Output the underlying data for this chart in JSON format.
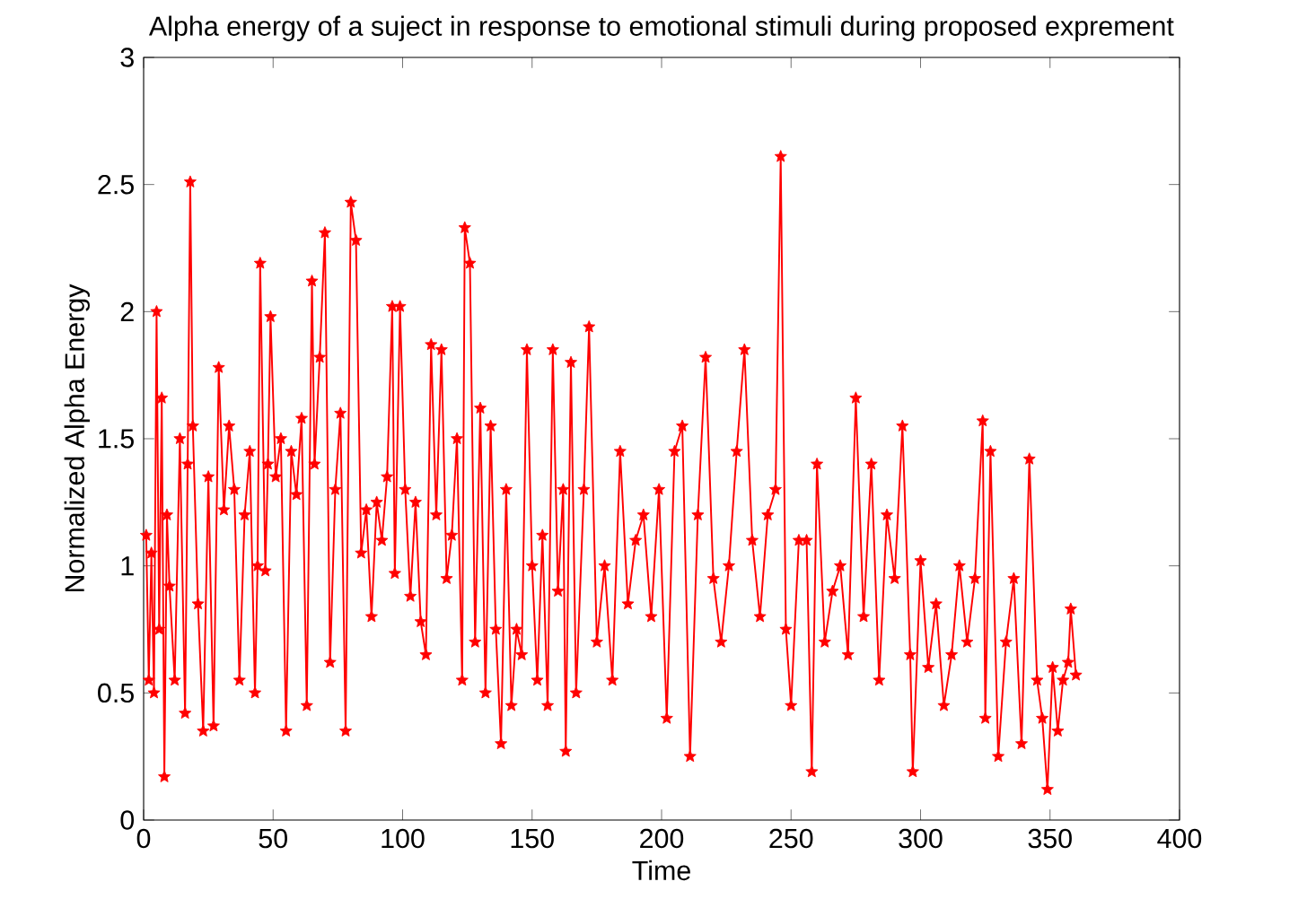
{
  "chart_data": {
    "type": "line",
    "title": "Alpha energy of a suject in response to emotional stimuli during proposed exprement",
    "xlabel": "Time",
    "ylabel": "Normalized Alpha Energy",
    "xlim": [
      0,
      400
    ],
    "xticks": [
      0,
      50,
      100,
      150,
      200,
      250,
      300,
      350,
      400
    ],
    "ylim": [
      0,
      3
    ],
    "yticks": [
      0,
      0.5,
      1,
      1.5,
      2,
      2.5,
      3
    ],
    "marker": "star",
    "line_style": "solid",
    "grid": false,
    "x": [
      1,
      2,
      3,
      4,
      5,
      6,
      7,
      8,
      9,
      10,
      12,
      14,
      16,
      17,
      18,
      19,
      21,
      23,
      25,
      27,
      29,
      31,
      33,
      35,
      37,
      39,
      41,
      43,
      44,
      45,
      47,
      48,
      49,
      51,
      53,
      55,
      57,
      59,
      61,
      63,
      65,
      66,
      68,
      70,
      72,
      74,
      76,
      78,
      80,
      82,
      84,
      86,
      88,
      90,
      92,
      94,
      96,
      97,
      99,
      101,
      103,
      105,
      107,
      109,
      111,
      113,
      115,
      117,
      119,
      121,
      123,
      124,
      126,
      128,
      130,
      132,
      134,
      136,
      138,
      140,
      142,
      144,
      146,
      148,
      150,
      152,
      154,
      156,
      158,
      160,
      162,
      163,
      165,
      167,
      170,
      172,
      175,
      178,
      181,
      184,
      187,
      190,
      193,
      196,
      199,
      202,
      205,
      208,
      211,
      214,
      217,
      220,
      223,
      226,
      229,
      232,
      235,
      238,
      241,
      244,
      246,
      248,
      250,
      253,
      256,
      258,
      260,
      263,
      266,
      269,
      272,
      275,
      278,
      281,
      284,
      287,
      290,
      293,
      296,
      297,
      300,
      303,
      306,
      309,
      312,
      315,
      318,
      321,
      324,
      325,
      327,
      330,
      333,
      336,
      339,
      342,
      345,
      347,
      349,
      351,
      353,
      355,
      357,
      358,
      360
    ],
    "series": [
      {
        "color": "#ff0000",
        "values": [
          1.12,
          0.55,
          1.05,
          0.5,
          2.0,
          0.75,
          1.66,
          0.17,
          1.2,
          0.92,
          0.55,
          1.5,
          0.42,
          1.4,
          2.51,
          1.55,
          0.85,
          0.35,
          1.35,
          0.37,
          1.78,
          1.22,
          1.55,
          1.3,
          0.55,
          1.2,
          1.45,
          0.5,
          1.0,
          2.19,
          0.98,
          1.4,
          1.98,
          1.35,
          1.5,
          0.35,
          1.45,
          1.28,
          1.58,
          0.45,
          2.12,
          1.4,
          1.82,
          2.31,
          0.62,
          1.3,
          1.6,
          0.35,
          2.43,
          2.28,
          1.05,
          1.22,
          0.8,
          1.25,
          1.1,
          1.35,
          2.02,
          0.97,
          2.02,
          1.3,
          0.88,
          1.25,
          0.78,
          0.65,
          1.87,
          1.2,
          1.85,
          0.95,
          1.12,
          1.5,
          0.55,
          2.33,
          2.19,
          0.7,
          1.62,
          0.5,
          1.55,
          0.75,
          0.3,
          1.3,
          0.45,
          0.75,
          0.65,
          1.85,
          1.0,
          0.55,
          1.12,
          0.45,
          1.85,
          0.9,
          1.3,
          0.27,
          1.8,
          0.5,
          1.3,
          1.94,
          0.7,
          1.0,
          0.55,
          1.45,
          0.85,
          1.1,
          1.2,
          0.8,
          1.3,
          0.4,
          1.45,
          1.55,
          0.25,
          1.2,
          1.82,
          0.95,
          0.7,
          1.0,
          1.45,
          1.85,
          1.1,
          0.8,
          1.2,
          1.3,
          2.61,
          0.75,
          0.45,
          1.1,
          1.1,
          0.19,
          1.4,
          0.7,
          0.9,
          1.0,
          0.65,
          1.66,
          0.8,
          1.4,
          0.55,
          1.2,
          0.95,
          1.55,
          0.65,
          0.19,
          1.02,
          0.6,
          0.85,
          0.45,
          0.65,
          1.0,
          0.7,
          0.95,
          1.57,
          0.4,
          1.45,
          0.25,
          0.7,
          0.95,
          0.3,
          1.42,
          0.55,
          0.4,
          0.12,
          0.6,
          0.35,
          0.55,
          0.62,
          0.83,
          0.57
        ]
      }
    ]
  }
}
